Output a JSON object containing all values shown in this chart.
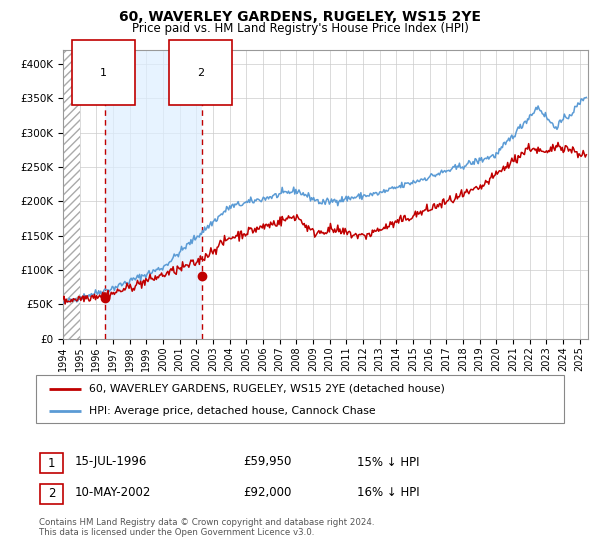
{
  "title": "60, WAVERLEY GARDENS, RUGELEY, WS15 2YE",
  "subtitle": "Price paid vs. HM Land Registry's House Price Index (HPI)",
  "legend_line1": "60, WAVERLEY GARDENS, RUGELEY, WS15 2YE (detached house)",
  "legend_line2": "HPI: Average price, detached house, Cannock Chase",
  "table_row1": [
    "1",
    "15-JUL-1996",
    "£59,950",
    "15% ↓ HPI"
  ],
  "table_row2": [
    "2",
    "10-MAY-2002",
    "£92,000",
    "16% ↓ HPI"
  ],
  "footnote": "Contains HM Land Registry data © Crown copyright and database right 2024.\nThis data is licensed under the Open Government Licence v3.0.",
  "sale1_date": 1996.54,
  "sale1_price": 59950,
  "sale2_date": 2002.36,
  "sale2_price": 92000,
  "hpi_color": "#5b9bd5",
  "price_color": "#c00000",
  "vline1_x": 1996.54,
  "vline2_x": 2002.36,
  "xmin": 1994.0,
  "xmax": 2025.5,
  "ymin": 0,
  "ymax": 420000,
  "yticks": [
    0,
    50000,
    100000,
    150000,
    200000,
    250000,
    300000,
    350000,
    400000
  ],
  "ytick_labels": [
    "£0",
    "£50K",
    "£100K",
    "£150K",
    "£200K",
    "£250K",
    "£300K",
    "£350K",
    "£400K"
  ],
  "hatch_end": 1995.0,
  "shade_start": 1996.54,
  "shade_end": 2002.36,
  "figwidth": 6.0,
  "figheight": 5.6,
  "dpi": 100
}
